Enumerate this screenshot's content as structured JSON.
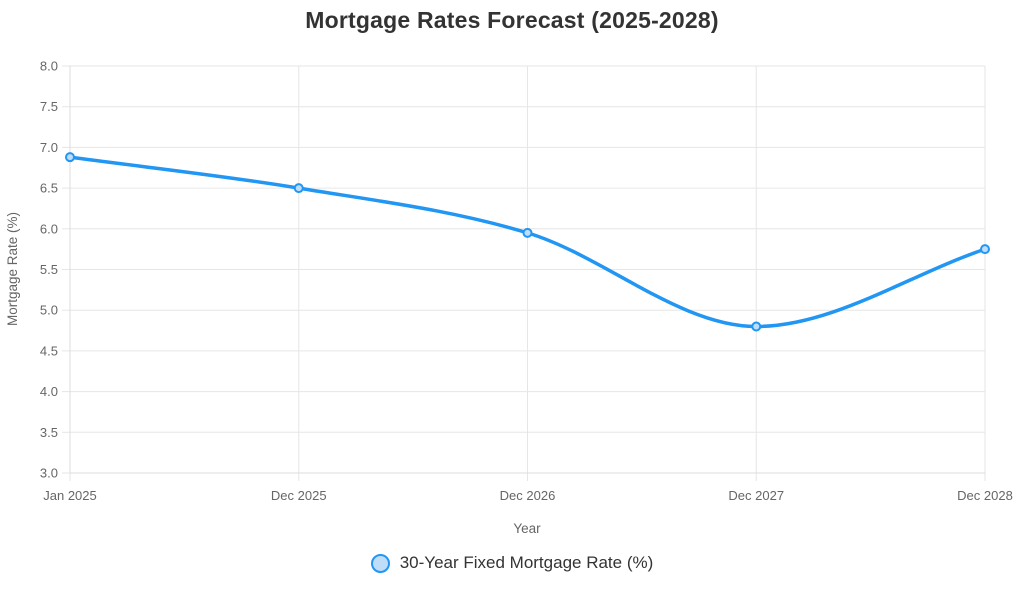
{
  "chart_data": {
    "type": "line",
    "title": "Mortgage Rates Forecast (2025-2028)",
    "categories": [
      "Jan 2025",
      "Dec 2025",
      "Dec 2026",
      "Dec 2027",
      "Dec 2028"
    ],
    "series": [
      {
        "name": "30-Year Fixed Mortgage Rate (%)",
        "values": [
          6.88,
          6.5,
          5.95,
          4.8,
          5.75
        ]
      }
    ],
    "xlabel": "Year",
    "ylabel": "Mortgage Rate (%)",
    "ylim": [
      3.0,
      8.0
    ],
    "y_tick_step": 0.5,
    "y_tick_labels": [
      "8.0",
      "7.5",
      "7.0",
      "6.5",
      "6.0",
      "5.5",
      "5.0",
      "4.5",
      "4.0",
      "3.5",
      "3.0"
    ],
    "grid": true,
    "legend_position": "bottom",
    "line_smoothing": "monotone",
    "marker_style": "circle",
    "colors": {
      "line": "#2196F3",
      "point_fill": "#BFDDF9",
      "grid": "#E6E6E6",
      "axis_border": "#DCDCDC",
      "tick_label": "#666666",
      "axis_title": "#666666",
      "title": "#333333",
      "legend_label": "#333333",
      "background": "#FFFFFF"
    }
  }
}
